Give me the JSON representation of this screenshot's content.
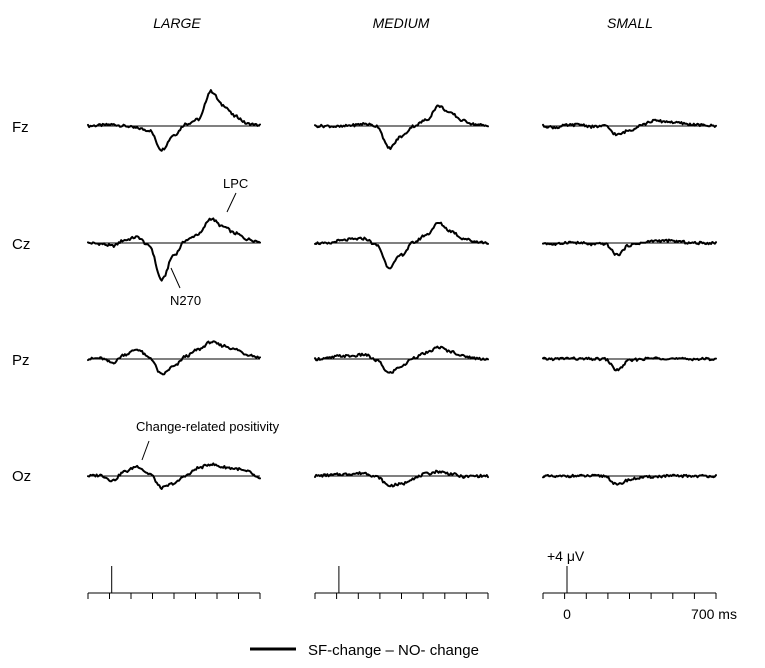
{
  "chart_data": {
    "type": "line",
    "conditions": [
      "LARGE",
      "MEDIUM",
      "SMALL"
    ],
    "electrodes": [
      "Fz",
      "Cz",
      "Pz",
      "Oz"
    ],
    "x": [
      0,
      50,
      100,
      150,
      200,
      250,
      300,
      350,
      400,
      450,
      500,
      550,
      600,
      650,
      700
    ],
    "xunit": "ms",
    "series": [
      {
        "condition": "LARGE",
        "electrode": "Fz",
        "values": [
          0,
          0.1,
          0.2,
          0.0,
          -0.3,
          -0.6,
          -3.2,
          -1.2,
          0.3,
          0.9,
          4.7,
          2.8,
          1.3,
          0.3,
          0.1
        ]
      },
      {
        "condition": "LARGE",
        "electrode": "Cz",
        "values": [
          0,
          -0.1,
          -0.4,
          0.4,
          0.8,
          -0.4,
          -5.0,
          -1.6,
          0.4,
          1.2,
          3.3,
          2.2,
          1.3,
          0.5,
          0.2
        ]
      },
      {
        "condition": "LARGE",
        "electrode": "Pz",
        "values": [
          0,
          0.1,
          -0.5,
          0.6,
          1.3,
          0.2,
          -2.1,
          -1.0,
          0.4,
          1.3,
          2.3,
          1.8,
          1.3,
          0.6,
          0.2
        ]
      },
      {
        "condition": "LARGE",
        "electrode": "Oz",
        "values": [
          0,
          0.1,
          -0.6,
          0.6,
          1.3,
          0.3,
          -1.6,
          -1.0,
          0.1,
          1.1,
          1.6,
          1.2,
          1.0,
          0.6,
          -0.4
        ]
      },
      {
        "condition": "MEDIUM",
        "electrode": "Fz",
        "values": [
          0,
          0.0,
          -0.1,
          0.1,
          0.3,
          0.0,
          -3.0,
          -1.4,
          0.0,
          0.8,
          2.7,
          1.7,
          0.7,
          0.2,
          0.0
        ]
      },
      {
        "condition": "MEDIUM",
        "electrode": "Cz",
        "values": [
          0,
          -0.1,
          0.3,
          0.5,
          0.6,
          -0.3,
          -3.3,
          -1.6,
          0.1,
          1.1,
          2.7,
          1.6,
          0.6,
          0.2,
          0.0
        ]
      },
      {
        "condition": "MEDIUM",
        "electrode": "Pz",
        "values": [
          0,
          0.1,
          0.4,
          0.4,
          0.6,
          -0.2,
          -1.9,
          -1.0,
          0.2,
          0.8,
          1.6,
          1.0,
          0.4,
          0.1,
          0.0
        ]
      },
      {
        "condition": "MEDIUM",
        "electrode": "Oz",
        "values": [
          0,
          0.1,
          0.2,
          0.3,
          0.4,
          -0.1,
          -1.3,
          -1.1,
          -0.3,
          0.3,
          0.6,
          0.3,
          -0.1,
          0.0,
          0.0
        ]
      },
      {
        "condition": "SMALL",
        "electrode": "Fz",
        "values": [
          0,
          -0.2,
          0.1,
          0.2,
          -0.1,
          0.0,
          -1.2,
          -0.6,
          0.2,
          0.7,
          0.6,
          0.4,
          0.2,
          0.1,
          0.0
        ]
      },
      {
        "condition": "SMALL",
        "electrode": "Cz",
        "values": [
          0,
          -0.2,
          0.1,
          0.0,
          -0.2,
          -0.1,
          -1.6,
          -0.3,
          0.0,
          0.3,
          0.3,
          0.2,
          0.0,
          0.0,
          0.0
        ]
      },
      {
        "condition": "SMALL",
        "electrode": "Pz",
        "values": [
          0,
          0.0,
          0.1,
          0.0,
          0.0,
          0.0,
          -1.5,
          -0.2,
          0.0,
          0.1,
          0.1,
          0.0,
          0.0,
          0.0,
          0.0
        ]
      },
      {
        "condition": "SMALL",
        "electrode": "Oz",
        "values": [
          0,
          -0.1,
          0.0,
          0.0,
          0.0,
          0.0,
          -1.2,
          -0.5,
          -0.2,
          -0.1,
          0.0,
          0.0,
          0.0,
          0.0,
          0.0
        ]
      }
    ],
    "annotations": [
      {
        "text": "LPC",
        "condition": "LARGE",
        "electrode": "Cz"
      },
      {
        "text": "N270",
        "condition": "LARGE",
        "electrode": "Cz"
      },
      {
        "text": "Change-related positivity",
        "condition": "LARGE",
        "electrode": "Oz"
      }
    ],
    "scale": {
      "voltage_label": "+4 μV",
      "time_start_label": "0",
      "time_end_label": "700 ms",
      "voltage_value": 4,
      "time_end_value": 700
    },
    "legend": {
      "label": "SF-change – NO- change",
      "color": "#000000"
    }
  }
}
